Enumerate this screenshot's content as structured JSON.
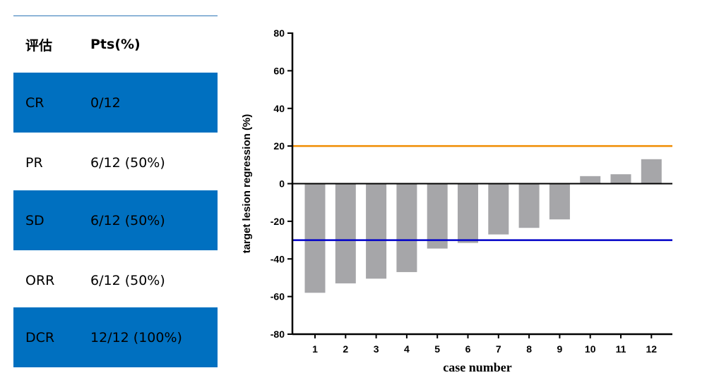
{
  "table": {
    "headers": [
      "评估",
      "Pts(%)"
    ],
    "rows": [
      {
        "label": "CR",
        "value": "0/12",
        "highlight": true
      },
      {
        "label": "PR",
        "value": "6/12 (50%)",
        "highlight": false
      },
      {
        "label": "SD",
        "value": "6/12 (50%)",
        "highlight": true
      },
      {
        "label": "ORR",
        "value": "6/12 (50%)",
        "highlight": false
      },
      {
        "label": "DCR",
        "value": "12/12 (100%)",
        "highlight": true
      }
    ],
    "highlight_color": "#0070C0"
  },
  "chart_data": {
    "type": "bar",
    "categories": [
      "1",
      "2",
      "3",
      "4",
      "5",
      "6",
      "7",
      "8",
      "9",
      "10",
      "11",
      "12"
    ],
    "values": [
      -58,
      -53,
      -50.5,
      -47,
      -34.5,
      -31.5,
      -27,
      -23.5,
      -19,
      4,
      5,
      13
    ],
    "xlabel": "case number",
    "ylabel": "target lesion regression (%)",
    "ylim": [
      -80,
      80
    ],
    "yticks": [
      80,
      60,
      40,
      20,
      0,
      -20,
      -40,
      -60,
      -80
    ],
    "reference_lines": [
      {
        "y": 20,
        "color": "#F08C00"
      },
      {
        "y": -30,
        "color": "#0000C8"
      }
    ],
    "bar_color": "#A6A6A9",
    "grid": false
  }
}
